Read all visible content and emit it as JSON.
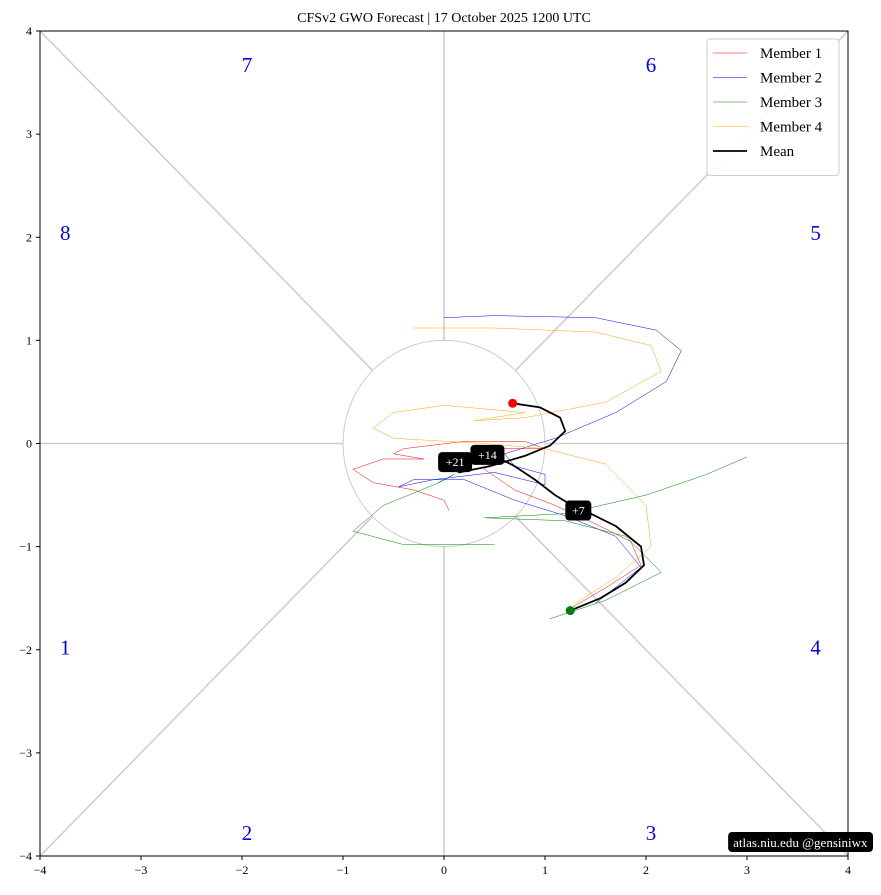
{
  "chart_data": {
    "type": "line",
    "title": "CFSv2 GWO Forecast  |  17  October  2025 1200 UTC",
    "footer": "atlas.niu.edu  @gensiniwx",
    "xlim": [
      -4,
      4
    ],
    "ylim": [
      -4,
      4
    ],
    "xticks": [
      {
        "value": -4,
        "label": "−4"
      },
      {
        "value": -3,
        "label": "−3"
      },
      {
        "value": -2,
        "label": "−2"
      },
      {
        "value": -1,
        "label": "−1"
      },
      0,
      1,
      2,
      3,
      4
    ],
    "yticks": [
      {
        "value": -4,
        "label": "−4"
      },
      {
        "value": -3,
        "label": "−3"
      },
      {
        "value": -2,
        "label": "−2"
      },
      {
        "value": -1,
        "label": "−1"
      },
      0,
      1,
      2,
      3,
      4
    ],
    "legend": "upper right",
    "phase_color": "#0000ff",
    "start_color": "#008000",
    "end_color": "#ff0000",
    "phases": [
      {
        "text": "1",
        "x": -3.75,
        "y": -2
      },
      {
        "text": "2",
        "x": -1.95,
        "y": -3.8
      },
      {
        "text": "3",
        "x": 2.05,
        "y": -3.8
      },
      {
        "text": "4",
        "x": 3.68,
        "y": -2
      },
      {
        "text": "5",
        "x": 3.68,
        "y": 2.02
      },
      {
        "text": "6",
        "x": 2.05,
        "y": 3.65
      },
      {
        "text": "7",
        "x": -1.95,
        "y": 3.65
      },
      {
        "text": "8",
        "x": -3.75,
        "y": 2.02
      }
    ],
    "day_labels": [
      {
        "text": "+7",
        "x": 1.33,
        "y": -0.65
      },
      {
        "text": "+14",
        "x": 0.43,
        "y": -0.11
      },
      {
        "text": "+21",
        "x": 0.11,
        "y": -0.18
      }
    ],
    "series": [
      {
        "name": "Member 1",
        "color": "#ff0000",
        "width": 0.5,
        "x": [
          1.25,
          1.6,
          1.95,
          1.85,
          1.5,
          1.1,
          0.7,
          0.4,
          0.6,
          1.0,
          0.8,
          0.2,
          -0.4,
          -0.5,
          -0.2,
          -0.6,
          -0.9,
          -0.7,
          -0.3,
          0,
          0.05
        ],
        "values": [
          -1.6,
          -1.4,
          -1.18,
          -0.95,
          -0.78,
          -0.6,
          -0.45,
          -0.25,
          -0.05,
          -0.05,
          0.02,
          0.02,
          -0.05,
          -0.1,
          -0.15,
          -0.15,
          -0.25,
          -0.38,
          -0.45,
          -0.55,
          -0.65
        ]
      },
      {
        "name": "Member 2",
        "color": "#0000ff",
        "width": 0.5,
        "x": [
          1.5,
          1.95,
          1.7,
          1.2,
          0.7,
          0.2,
          -0.3,
          -0.45,
          -0.1,
          0.5,
          1.0,
          1.0,
          0.7,
          0.6,
          1.1,
          1.7,
          2.2,
          2.35,
          2.1,
          1.5,
          0.5,
          0
        ],
        "values": [
          -1.55,
          -1.2,
          -0.9,
          -0.7,
          -0.55,
          -0.35,
          -0.35,
          -0.42,
          -0.35,
          -0.28,
          -0.4,
          -0.3,
          -0.22,
          -0.1,
          0.05,
          0.3,
          0.6,
          0.9,
          1.1,
          1.22,
          1.24,
          1.22
        ]
      },
      {
        "name": "Member 3",
        "color": "#008000",
        "width": 0.5,
        "x": [
          1.05,
          1.6,
          2.15,
          1.8,
          1.2,
          0.4,
          1.2,
          2.0,
          2.6,
          3.0,
          null,
          0.5,
          -0.4,
          -0.9,
          -0.6,
          -0.1,
          0.1,
          -0.05
        ],
        "values": [
          -1.7,
          -1.52,
          -1.25,
          -0.9,
          -0.75,
          -0.72,
          -0.68,
          -0.5,
          -0.3,
          -0.13,
          null,
          -0.98,
          -0.98,
          -0.85,
          -0.6,
          -0.4,
          -0.3,
          -0.38
        ]
      },
      {
        "name": "Member 4",
        "color": "#ffa500",
        "width": 0.5,
        "x": [
          1.3,
          1.7,
          2.05,
          2.0,
          1.6,
          1.0,
          0.4,
          -0.5,
          -0.7,
          -0.5,
          0,
          0.8,
          0.3,
          0.8,
          1.6,
          2.15,
          2.05,
          1.5,
          0.5,
          -0.3
        ],
        "values": [
          -1.55,
          -1.3,
          -1.0,
          -0.6,
          -0.2,
          -0.05,
          0,
          0.05,
          0.15,
          0.3,
          0.37,
          0.3,
          0.22,
          0.25,
          0.4,
          0.7,
          0.95,
          1.08,
          1.12,
          1.12
        ]
      },
      {
        "name": "Mean",
        "color": "#000000",
        "width": 1.8,
        "x": [
          1.25,
          1.55,
          1.8,
          1.98,
          1.95,
          1.7,
          1.45,
          1.3,
          1.1,
          0.9,
          0.7,
          0.5,
          0.35,
          0.25,
          0.1,
          0.15,
          0.45,
          0.8,
          1.05,
          1.2,
          1.15,
          0.95,
          0.68
        ],
        "values": [
          -1.62,
          -1.5,
          -1.35,
          -1.18,
          -1.0,
          -0.8,
          -0.68,
          -0.62,
          -0.5,
          -0.35,
          -0.22,
          -0.12,
          -0.1,
          -0.18,
          -0.25,
          -0.28,
          -0.22,
          -0.12,
          -0.02,
          0.12,
          0.25,
          0.35,
          0.39
        ]
      }
    ]
  }
}
